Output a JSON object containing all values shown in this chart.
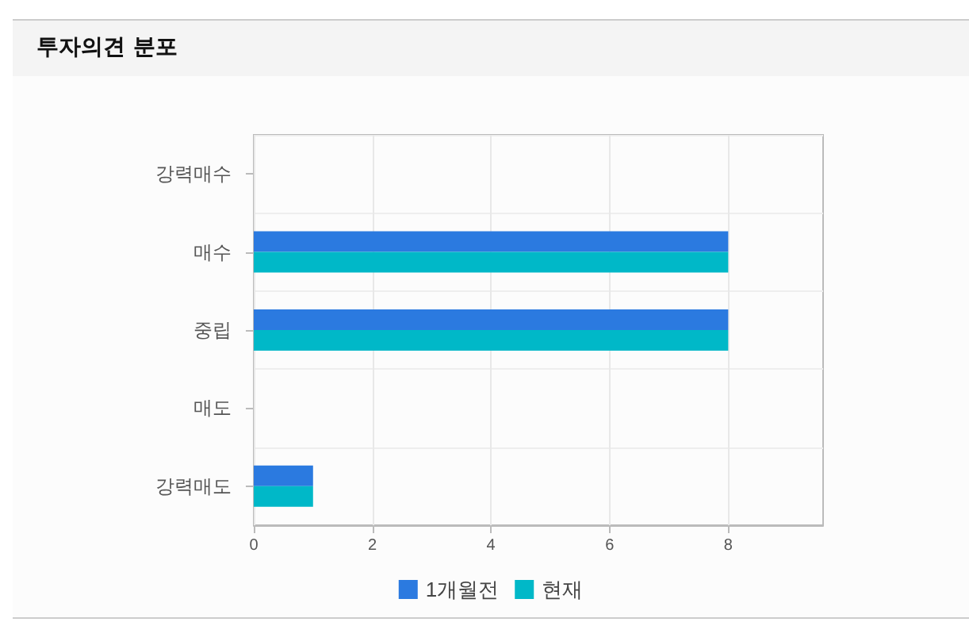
{
  "chart_data": {
    "type": "bar",
    "title": "투자의견 분포",
    "orientation": "horizontal",
    "categories": [
      "강력매수",
      "매수",
      "중립",
      "매도",
      "강력매도"
    ],
    "series": [
      {
        "name": "1개월전",
        "color": "#2b7ae0",
        "values": [
          0,
          8,
          8,
          0,
          1
        ]
      },
      {
        "name": "현재",
        "color": "#00b8c8",
        "values": [
          0,
          8,
          8,
          0,
          1
        ]
      }
    ],
    "xlim": [
      0,
      9.6
    ],
    "xticks": [
      0,
      2,
      4,
      6,
      8
    ],
    "grid": true,
    "legend": "bottom"
  }
}
